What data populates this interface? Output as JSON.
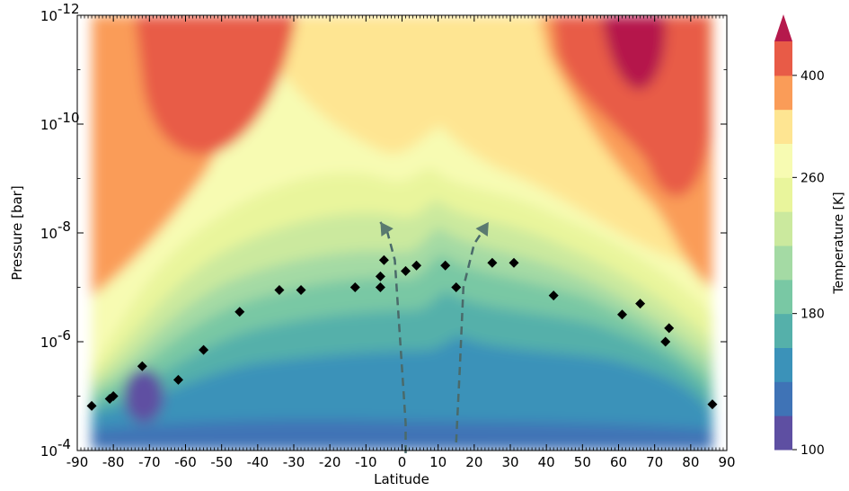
{
  "chart_data": {
    "type": "heatmap",
    "title": "",
    "xlabel": "Latitude",
    "ylabel": "Pressure [bar]",
    "xlim": [
      -90,
      90
    ],
    "ylim_log10": [
      -4,
      -12
    ],
    "y_scale": "log",
    "x_ticks": [
      "-90",
      "-80",
      "-70",
      "-60",
      "-50",
      "-40",
      "-30",
      "-20",
      "-10",
      "0",
      "10",
      "20",
      "30",
      "40",
      "50",
      "60",
      "70",
      "80",
      "90"
    ],
    "y_ticks": [
      {
        "base": "10",
        "exp": "-4",
        "log10": -4
      },
      {
        "base": "10",
        "exp": "-6",
        "log10": -6
      },
      {
        "base": "10",
        "exp": "-8",
        "log10": -8
      },
      {
        "base": "10",
        "exp": "-10",
        "log10": -10
      },
      {
        "base": "10",
        "exp": "-12",
        "log10": -12
      }
    ],
    "colorbar": {
      "label": "Temperature [K]",
      "ticks": [
        "100",
        "180",
        "260",
        "400"
      ],
      "colors": [
        "#5e4fa2",
        "#3f73b6",
        "#3b92b9",
        "#55b0aa",
        "#79c8a4",
        "#a4daa4",
        "#cbe99e",
        "#e9f59c",
        "#f7fbb2",
        "#fee592",
        "#fa9c58",
        "#e85b47",
        "#b5194c"
      ],
      "extend_color": "#b5194c"
    },
    "observations": [
      {
        "lat": -86,
        "log10p": -4.82
      },
      {
        "lat": -81,
        "log10p": -4.95
      },
      {
        "lat": -80,
        "log10p": -5.0
      },
      {
        "lat": -72,
        "log10p": -5.55
      },
      {
        "lat": -62,
        "log10p": -5.3
      },
      {
        "lat": -55,
        "log10p": -5.85
      },
      {
        "lat": -45,
        "log10p": -6.55
      },
      {
        "lat": -34,
        "log10p": -6.95
      },
      {
        "lat": -28,
        "log10p": -6.95
      },
      {
        "lat": -13,
        "log10p": -7.0
      },
      {
        "lat": -6,
        "log10p": -7.0
      },
      {
        "lat": -6,
        "log10p": -7.2
      },
      {
        "lat": -5,
        "log10p": -7.5
      },
      {
        "lat": 1,
        "log10p": -7.3
      },
      {
        "lat": 4,
        "log10p": -7.4
      },
      {
        "lat": 12,
        "log10p": -7.4
      },
      {
        "lat": 15,
        "log10p": -7.0
      },
      {
        "lat": 25,
        "log10p": -7.45
      },
      {
        "lat": 31,
        "log10p": -7.45
      },
      {
        "lat": 42,
        "log10p": -6.85
      },
      {
        "lat": 61,
        "log10p": -6.5
      },
      {
        "lat": 66,
        "log10p": -6.7
      },
      {
        "lat": 73,
        "log10p": -6.0
      },
      {
        "lat": 74,
        "log10p": -6.25
      },
      {
        "lat": 86,
        "log10p": -4.85
      }
    ],
    "circulation_arrows": [
      {
        "points": [
          [
            1,
            -3.95
          ],
          [
            1,
            -4.5
          ],
          [
            0,
            -5.5
          ],
          [
            -1,
            -6.5
          ],
          [
            -2,
            -7.5
          ],
          [
            -4,
            -8.0
          ],
          [
            -6,
            -8.2
          ]
        ]
      },
      {
        "points": [
          [
            15,
            -4.15
          ],
          [
            16,
            -5.5
          ],
          [
            17,
            -7.0
          ],
          [
            20,
            -7.8
          ],
          [
            24,
            -8.2
          ]
        ]
      }
    ]
  }
}
